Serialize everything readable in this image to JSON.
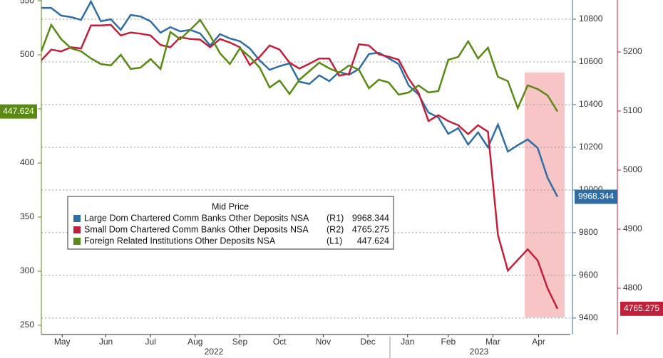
{
  "chart_data": {
    "type": "line",
    "legend_title": "Mid Price",
    "xlim": [
      0,
      52
    ],
    "xticks": [
      {
        "value": 2.1,
        "label": "May"
      },
      {
        "value": 6.5,
        "label": "Jun"
      },
      {
        "value": 11.0,
        "label": "Jul"
      },
      {
        "value": 15.5,
        "label": "Aug"
      },
      {
        "value": 20.0,
        "label": "Sep"
      },
      {
        "value": 24.0,
        "label": "Oct"
      },
      {
        "value": 28.4,
        "label": "Nov"
      },
      {
        "value": 32.9,
        "label": "Dec"
      },
      {
        "value": 36.9,
        "label": "Jan"
      },
      {
        "value": 41.0,
        "label": "Feb"
      },
      {
        "value": 45.5,
        "label": "Mar"
      },
      {
        "value": 50.1,
        "label": "Apr"
      }
    ],
    "year_labels": [
      "2022",
      "2023"
    ],
    "ylim": [
      241.4,
      550.7
    ],
    "yticks": [
      250,
      300,
      350,
      400,
      450,
      500,
      550
    ],
    "y2lim": [
      9323,
      10890
    ],
    "y2ticks": [
      9400,
      9600,
      9800,
      10000,
      10200,
      10400,
      10600,
      10800
    ],
    "y3lim": [
      4721.7,
      5288
    ],
    "y3ticks": [
      4800,
      4900,
      5000,
      5100,
      5200
    ],
    "grid": true,
    "series": [
      {
        "name": "Large Dom Chartered Comm Banks Other Deposits NSA",
        "axis_label": "(R1)",
        "axis": "y2",
        "color": "#2f6ea5",
        "values": [
          10853,
          10853,
          10817,
          10810,
          10797,
          10883,
          10790,
          10800,
          10750,
          10820,
          10813,
          10790,
          10737,
          10763,
          10743,
          10750,
          10733,
          10677,
          10730,
          10710,
          10697,
          10663,
          10607,
          10563,
          10580,
          10593,
          10507,
          10497,
          10537,
          10510,
          10553,
          10540,
          10567,
          10637,
          10643,
          10617,
          10590,
          10490,
          10447,
          10363,
          10340,
          10263,
          10290,
          10213,
          10270,
          10200,
          10307,
          10180,
          10210,
          10237,
          10197,
          10057,
          9968.344
        ]
      },
      {
        "name": "Small Dom Chartered Comm Banks Other Deposits NSA",
        "axis_label": "(R2)",
        "axis": "y3",
        "color": "#c0203a",
        "values": [
          5186,
          5204,
          5201,
          5208,
          5206,
          5245,
          5245,
          5246,
          5228,
          5233,
          5231,
          5228,
          5212,
          5208,
          5225,
          5222,
          5221,
          5208,
          5222,
          5216,
          5208,
          5178,
          5192,
          5211,
          5204,
          5182,
          5172,
          5180,
          5189,
          5189,
          5160,
          5163,
          5213,
          5211,
          5196,
          5192,
          5187,
          5155,
          5131,
          5083,
          5093,
          5083,
          5076,
          5061,
          5076,
          5065,
          4890,
          4830,
          4848,
          4866,
          4847,
          4800,
          4765.275
        ]
      },
      {
        "name": "Foreign Related Institutions Other Deposits NSA",
        "axis_label": "(L1)",
        "axis": "y",
        "color": "#5a8a14",
        "values": [
          503.3,
          527.7,
          514.5,
          506,
          503.3,
          496.7,
          491.5,
          490.2,
          500,
          486.9,
          488.2,
          496.1,
          486.9,
          521.1,
          514.5,
          523.1,
          532.3,
          517.8,
          501.4,
          491.5,
          506,
          498.1,
          488.2,
          469.8,
          476.3,
          463.8,
          477,
          484.9,
          492.8,
          487.5,
          483.6,
          490.2,
          486.2,
          469.1,
          477,
          474.4,
          463.2,
          465.2,
          471.7,
          465.2,
          466.5,
          495.4,
          498.1,
          512.5,
          496.7,
          506.6,
          479.6,
          475.7,
          450.7,
          471.7,
          468.4,
          462.5,
          447.624
        ]
      }
    ]
  }
}
